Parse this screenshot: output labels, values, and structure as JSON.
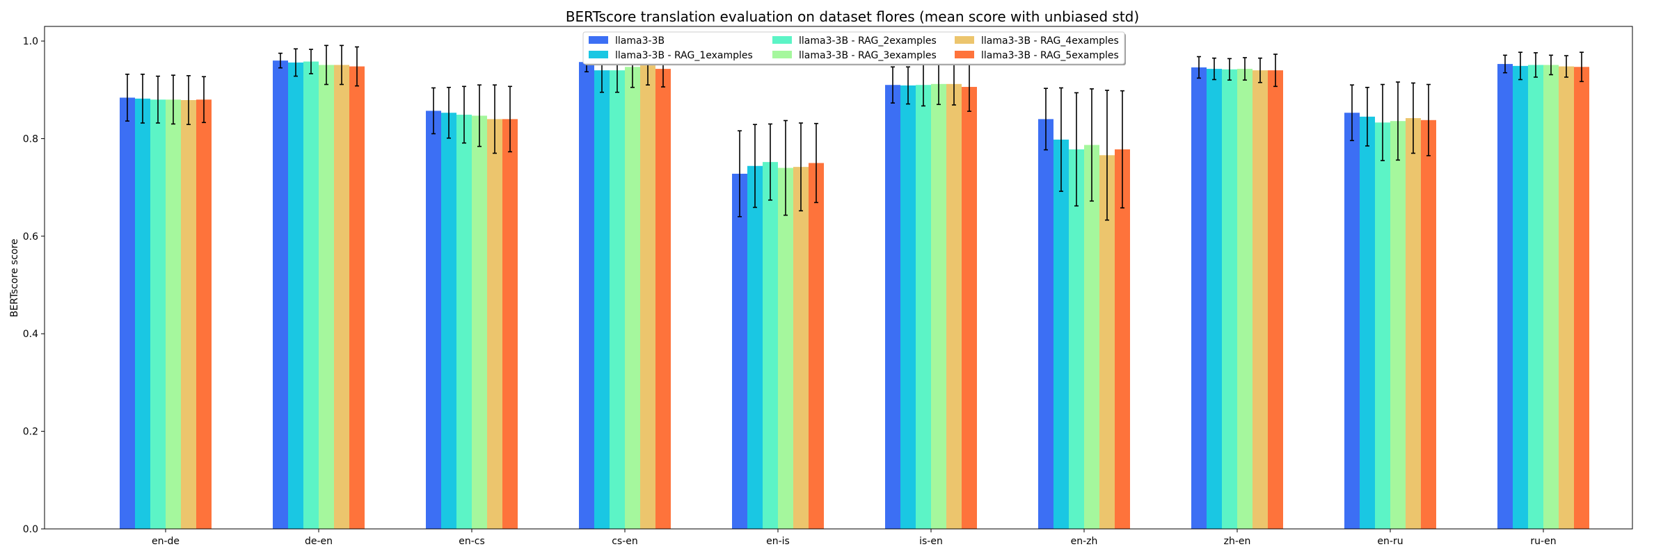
{
  "chart_data": {
    "type": "bar",
    "title": "BERTscore translation evaluation on dataset flores (mean score with unbiased std)",
    "xlabel": "",
    "ylabel": "BERTscore score",
    "ylim": [
      0,
      1.03
    ],
    "yticks": [
      "0.0",
      "0.2",
      "0.4",
      "0.6",
      "0.8",
      "1.0"
    ],
    "grid": false,
    "legend_position": "top-center",
    "categories": [
      "en-de",
      "de-en",
      "en-cs",
      "cs-en",
      "en-is",
      "is-en",
      "en-zh",
      "zh-en",
      "en-ru",
      "ru-en"
    ],
    "series": [
      {
        "name": "llama3-3B",
        "color": "#3c6ff4",
        "values": [
          0.884,
          0.96,
          0.857,
          0.957,
          0.728,
          0.91,
          0.84,
          0.946,
          0.853,
          0.953
        ],
        "errors": [
          0.048,
          0.015,
          0.047,
          0.02,
          0.088,
          0.037,
          0.063,
          0.022,
          0.057,
          0.018
        ]
      },
      {
        "name": "llama3-3B - RAG_1examples",
        "color": "#1ac7e3",
        "values": [
          0.882,
          0.956,
          0.853,
          0.94,
          0.744,
          0.909,
          0.798,
          0.943,
          0.845,
          0.949
        ],
        "errors": [
          0.05,
          0.028,
          0.052,
          0.045,
          0.085,
          0.038,
          0.106,
          0.022,
          0.06,
          0.028
        ]
      },
      {
        "name": "llama3-3B - RAG_2examples",
        "color": "#5cf4c6",
        "values": [
          0.88,
          0.958,
          0.849,
          0.94,
          0.752,
          0.91,
          0.778,
          0.942,
          0.833,
          0.951
        ],
        "errors": [
          0.048,
          0.025,
          0.058,
          0.045,
          0.078,
          0.043,
          0.116,
          0.022,
          0.078,
          0.025
        ]
      },
      {
        "name": "llama3-3B - RAG_3examples",
        "color": "#a5f79d",
        "values": [
          0.88,
          0.951,
          0.847,
          0.947,
          0.74,
          0.912,
          0.787,
          0.943,
          0.836,
          0.951
        ],
        "errors": [
          0.05,
          0.04,
          0.063,
          0.042,
          0.097,
          0.042,
          0.115,
          0.023,
          0.08,
          0.02
        ]
      },
      {
        "name": "llama3-3B - RAG_4examples",
        "color": "#ecc56d",
        "values": [
          0.879,
          0.951,
          0.84,
          0.95,
          0.742,
          0.912,
          0.766,
          0.94,
          0.842,
          0.948
        ],
        "errors": [
          0.05,
          0.04,
          0.07,
          0.04,
          0.09,
          0.043,
          0.133,
          0.025,
          0.072,
          0.022
        ]
      },
      {
        "name": "llama3-3B - RAG_5examples",
        "color": "#fe733b",
        "values": [
          0.88,
          0.948,
          0.84,
          0.943,
          0.75,
          0.906,
          0.778,
          0.94,
          0.838,
          0.947
        ],
        "errors": [
          0.047,
          0.04,
          0.067,
          0.037,
          0.081,
          0.05,
          0.12,
          0.033,
          0.073,
          0.03
        ]
      }
    ]
  }
}
